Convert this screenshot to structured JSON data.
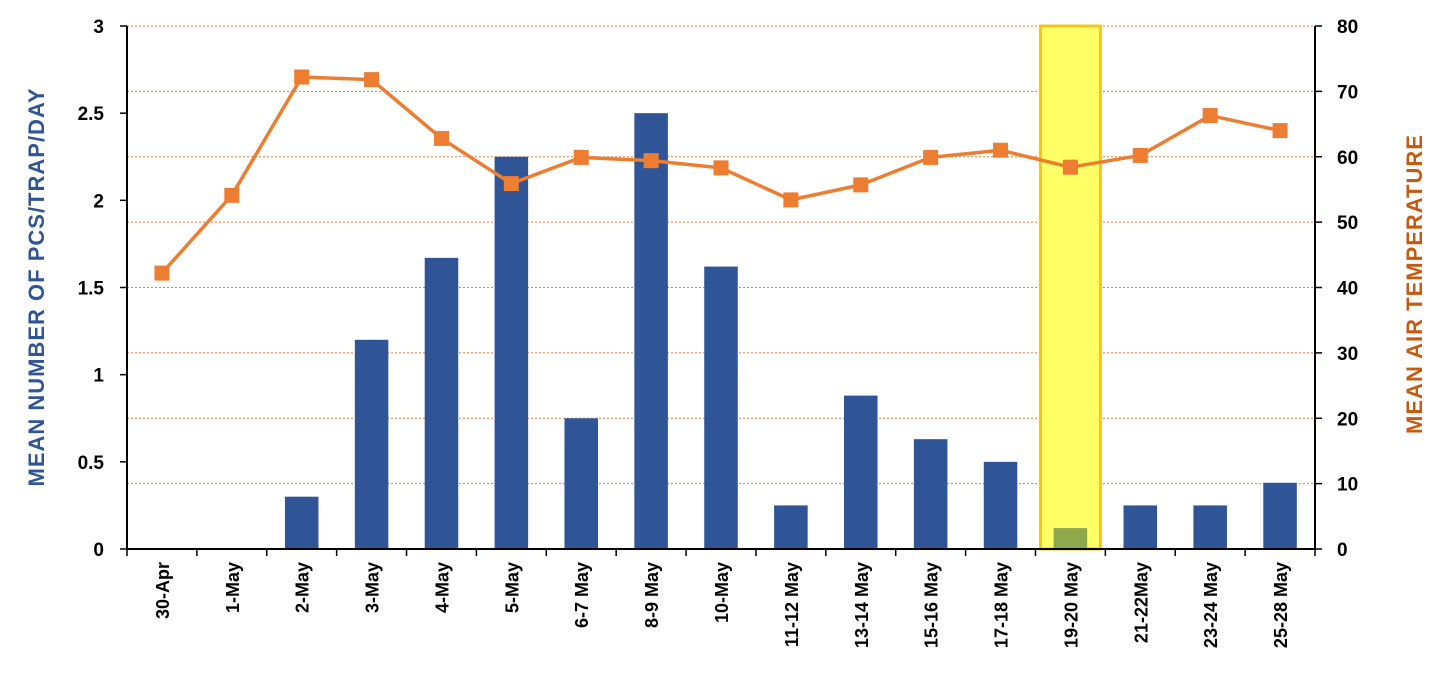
{
  "chart_data": {
    "type": "bar",
    "categories": [
      "30-Apr",
      "1-May",
      "2-May",
      "3-May",
      "4-May",
      "5-May",
      "6-7 May",
      "8-9 May",
      "10-May",
      "11-12 May",
      "13-14 May",
      "15-16 May",
      "17-18 May",
      "19-20 May",
      "21-22May",
      "23-24 May",
      "25-28 May"
    ],
    "series": [
      {
        "type": "bar",
        "axis": "left",
        "color": "#2F5597",
        "values": [
          0,
          0,
          0.3,
          1.2,
          1.67,
          2.25,
          0.75,
          2.5,
          1.62,
          0.25,
          0.88,
          0.63,
          0.5,
          0.12,
          0.25,
          0.25,
          0.38
        ]
      },
      {
        "type": "line",
        "axis": "right",
        "color": "#ED7D31",
        "marker": "square",
        "values": [
          42.2,
          54.1,
          72.2,
          71.8,
          62.8,
          55.9,
          59.9,
          59.4,
          58.3,
          53.4,
          55.7,
          59.9,
          61.0,
          58.4,
          60.2,
          66.3,
          64.0
        ]
      }
    ],
    "ylabel": "MEAN NUMBER OF PCS/TRAP/DAY",
    "y2label": "MEAN AIR TEMPERATURE",
    "ylim": [
      0,
      3
    ],
    "y2lim": [
      0,
      80
    ],
    "yticks": [
      "0",
      "0.5",
      "1",
      "1.5",
      "2",
      "2.5",
      "3"
    ],
    "y2ticks": [
      "0",
      "10",
      "20",
      "30",
      "40",
      "50",
      "60",
      "70",
      "80"
    ],
    "grid": "horizontal-dotted",
    "grid_color": "#E07B39",
    "highlight": {
      "category": "19-20 May",
      "fill": "#FFFF66",
      "border": "#F5C518",
      "bar_color": "#8FA84E"
    }
  }
}
